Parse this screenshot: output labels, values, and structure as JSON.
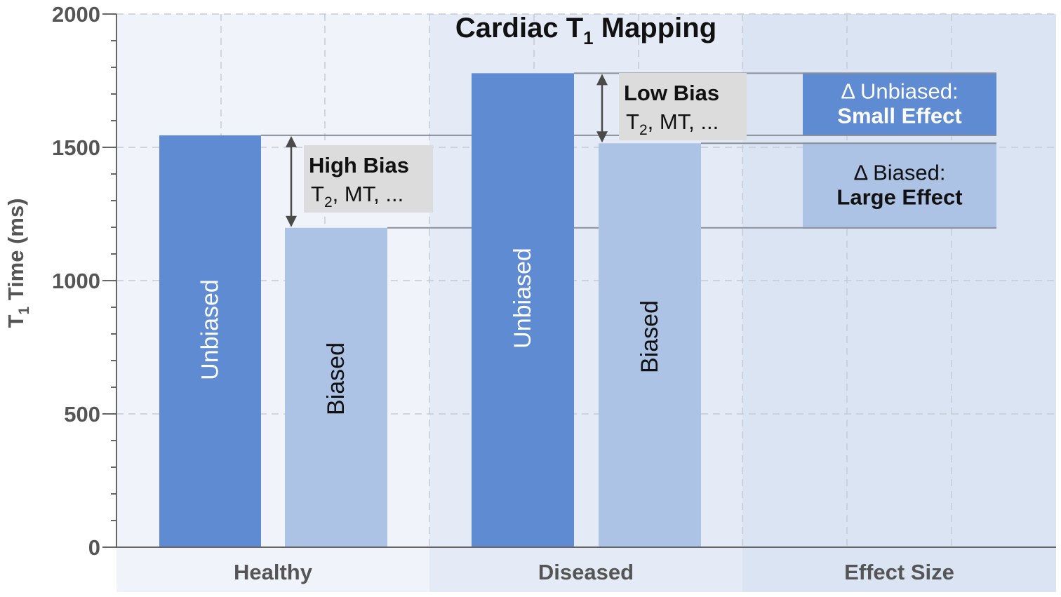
{
  "chart_data": {
    "type": "bar",
    "title_main": "Cardiac T",
    "title_sub": "1",
    "title_rest": " Mapping",
    "ylabel_main": "T",
    "ylabel_sub": "1",
    "ylabel_rest": " Time (ms)",
    "ylim": [
      0,
      2000
    ],
    "yticks": [
      "0",
      "500",
      "1000",
      "1500",
      "2000"
    ],
    "categories": [
      "Healthy",
      "Diseased",
      "Effect Size"
    ],
    "bars": [
      {
        "group": "Healthy",
        "label": "Unbiased",
        "value": 1545
      },
      {
        "group": "Healthy",
        "label": "Biased",
        "value": 1198
      },
      {
        "group": "Diseased",
        "label": "Unbiased",
        "value": 1778
      },
      {
        "group": "Diseased",
        "label": "Biased",
        "value": 1515
      }
    ],
    "bias_annotations": [
      {
        "title": "High Bias",
        "line_pre": "T",
        "line_sub": "2",
        "line_post": ", MT, ...",
        "from": 1545,
        "to": 1198
      },
      {
        "title": "Low Bias",
        "line_pre": "T",
        "line_sub": "2",
        "line_post": ", MT, ...",
        "from": 1778,
        "to": 1515
      }
    ],
    "effect_size": [
      {
        "line1": "Δ Unbiased:",
        "line2": "Small Effect",
        "from": 1545,
        "to": 1778
      },
      {
        "line1": "Δ Biased:",
        "line2": "Large Effect",
        "from": 1198,
        "to": 1515
      }
    ],
    "grid": true
  },
  "colors": {
    "unbiased": "#5e8bd2",
    "biased": "#adc3e6",
    "panel_1": "#f0f4fa",
    "panel_2": "#e4ebf6",
    "panel_3": "#dae4f2",
    "annotation_box": "#dcdcdc",
    "text": "#555555"
  }
}
